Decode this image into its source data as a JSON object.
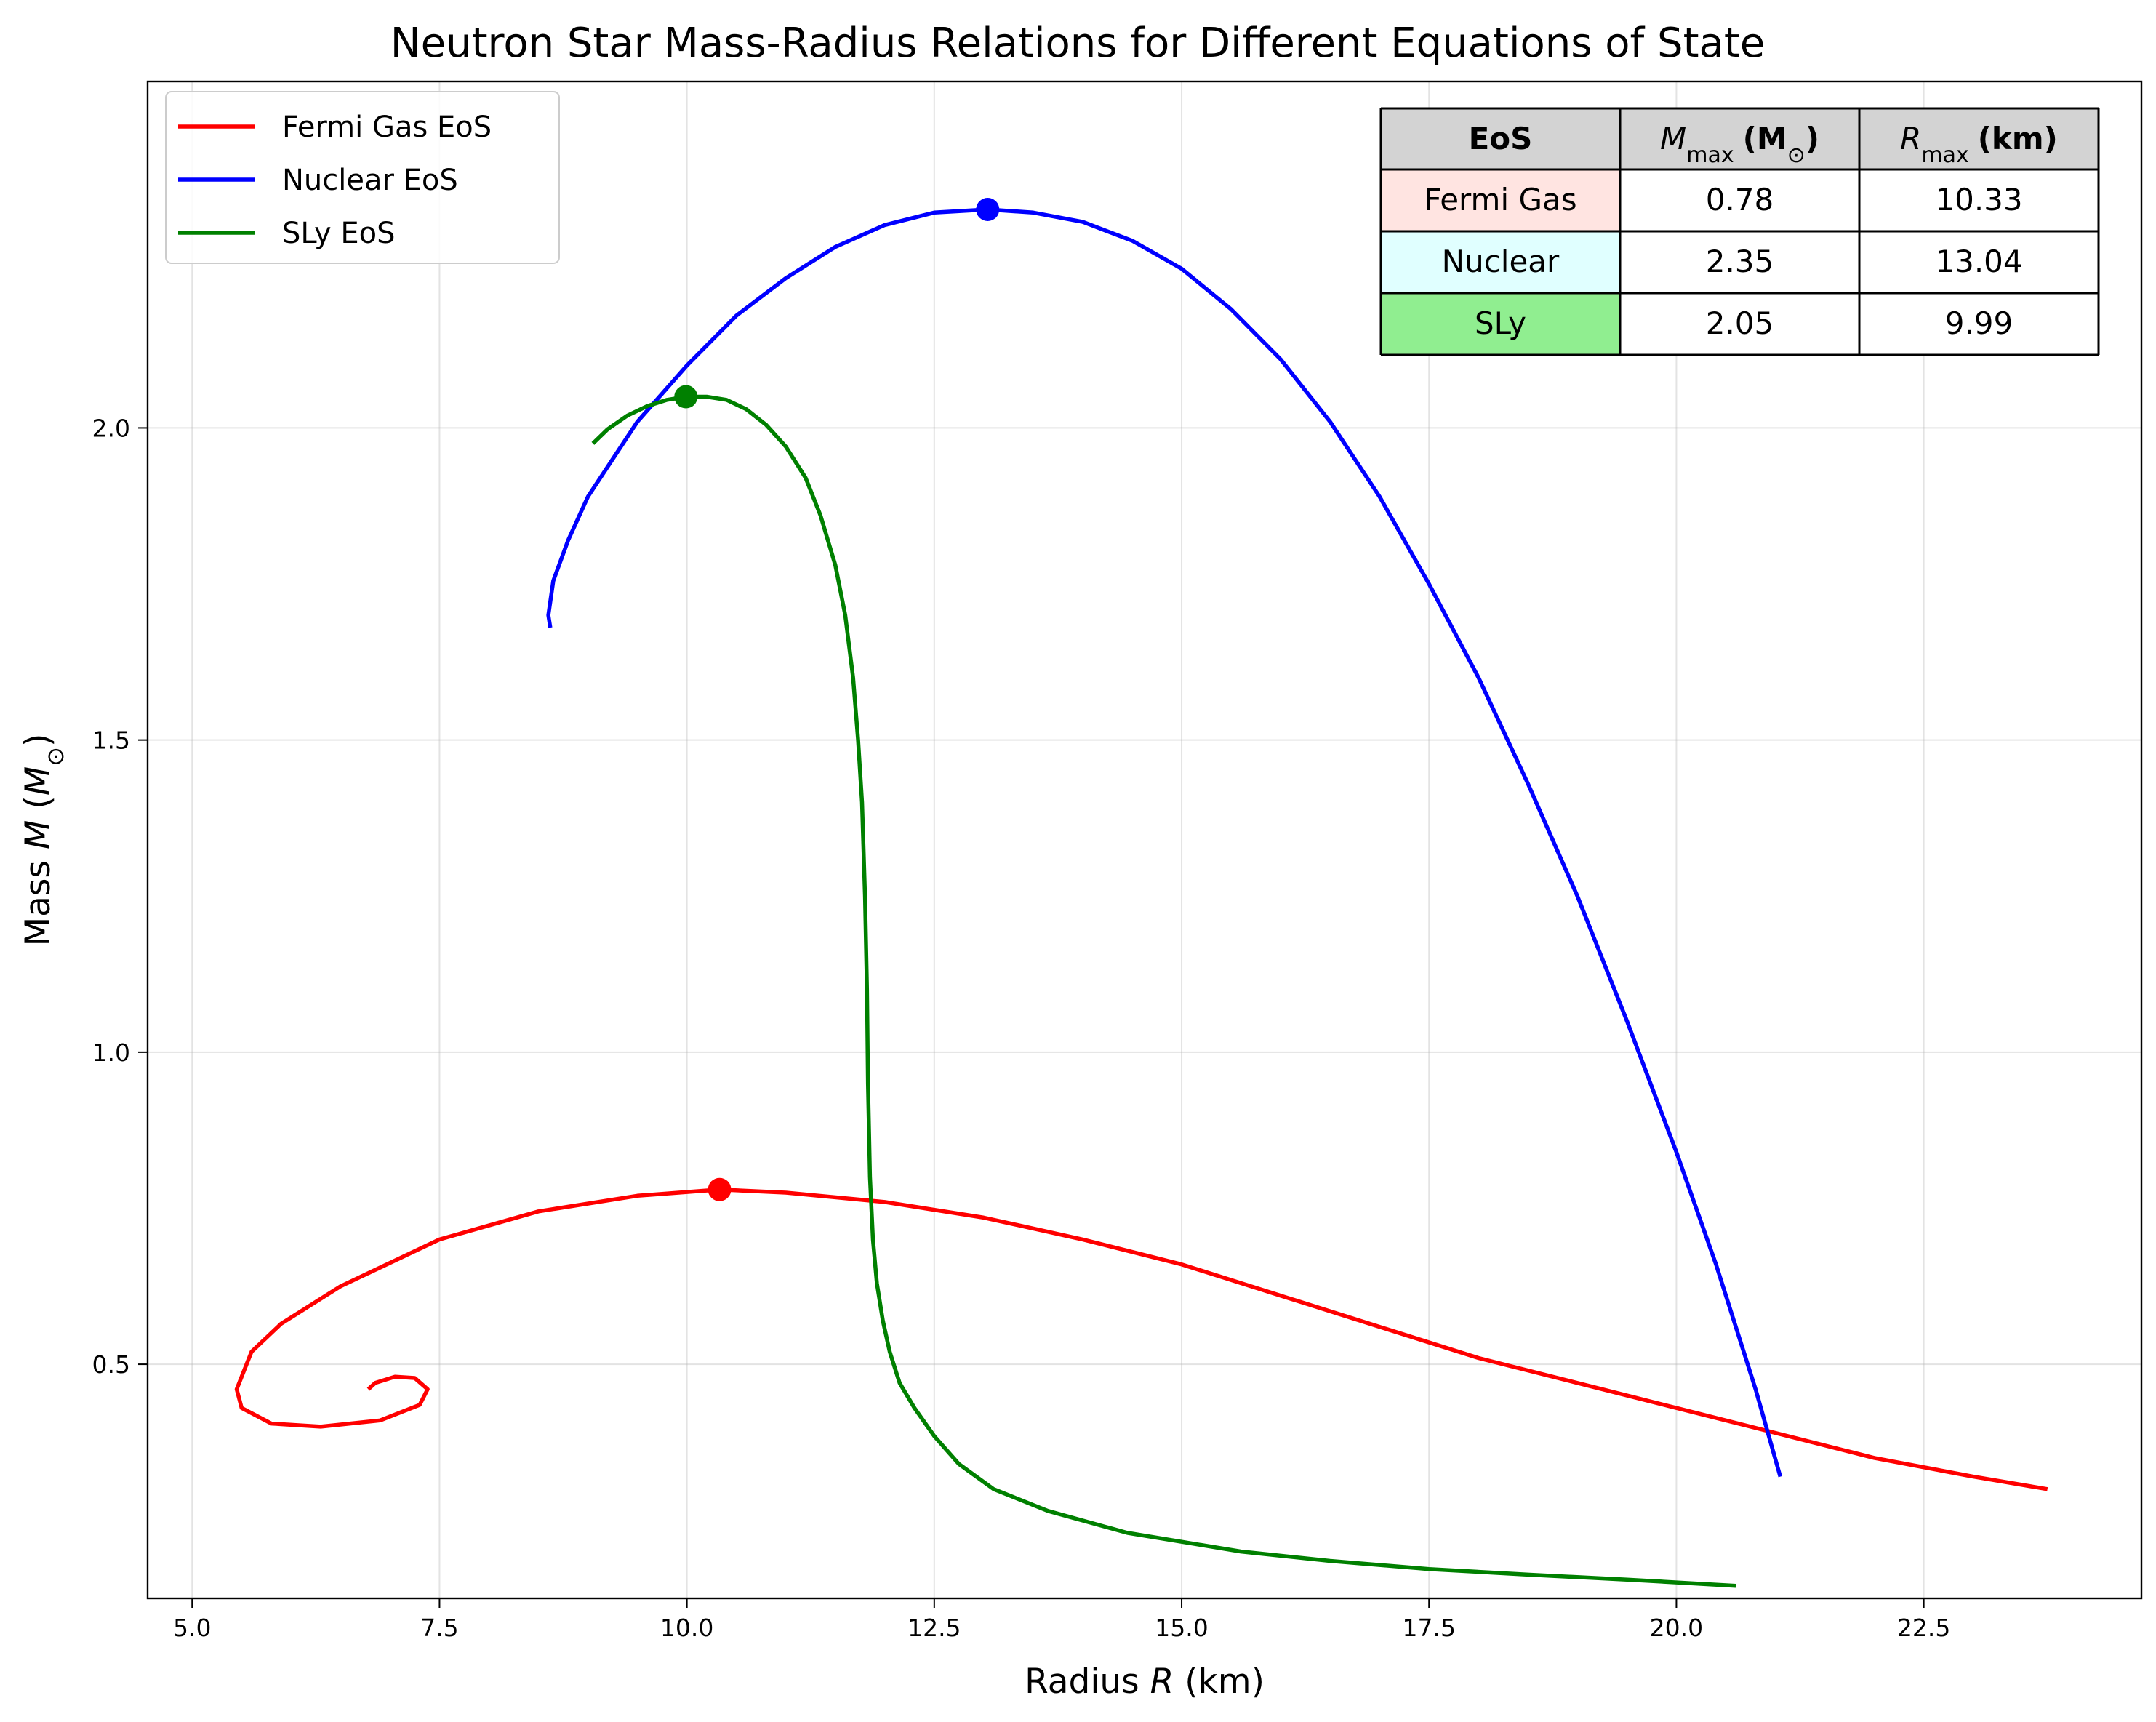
{
  "chart_data": {
    "type": "line",
    "title": "Neutron Star Mass-Radius Relations for Different Equations of State",
    "xlabel": "Radius R (km)",
    "ylabel": "Mass M (M⊙)",
    "xlim": [
      4.55,
      24.7
    ],
    "ylim": [
      0.125,
      2.555
    ],
    "x_ticks": [
      5.0,
      7.5,
      10.0,
      12.5,
      15.0,
      17.5,
      20.0,
      22.5
    ],
    "x_tick_labels": [
      "5.0",
      "7.5",
      "10.0",
      "12.5",
      "15.0",
      "17.5",
      "20.0",
      "22.5"
    ],
    "y_ticks": [
      0.5,
      1.0,
      1.5,
      2.0
    ],
    "y_tick_labels": [
      "0.5",
      "1.0",
      "1.5",
      "2.0"
    ],
    "grid": true,
    "legend_position": "upper-left",
    "series": [
      {
        "name": "Fermi Gas EoS",
        "color": "#ff0000",
        "x": [
          23.75,
          23.0,
          22.0,
          21.0,
          20.0,
          19.0,
          18.0,
          17.0,
          16.0,
          15.0,
          14.0,
          13.0,
          12.0,
          11.0,
          10.33,
          9.5,
          8.5,
          7.5,
          6.5,
          5.9,
          5.6,
          5.45,
          5.5,
          5.8,
          6.3,
          6.9,
          7.3,
          7.38,
          7.25,
          7.05,
          6.85,
          6.78
        ],
        "y": [
          0.3,
          0.32,
          0.35,
          0.39,
          0.43,
          0.47,
          0.51,
          0.56,
          0.61,
          0.66,
          0.7,
          0.735,
          0.76,
          0.775,
          0.78,
          0.77,
          0.745,
          0.7,
          0.625,
          0.565,
          0.52,
          0.46,
          0.43,
          0.405,
          0.4,
          0.41,
          0.435,
          0.46,
          0.478,
          0.48,
          0.47,
          0.46
        ]
      },
      {
        "name": "Nuclear EoS",
        "color": "#0000ff",
        "x": [
          21.05,
          20.8,
          20.4,
          20.0,
          19.5,
          19.0,
          18.5,
          18.0,
          17.5,
          17.0,
          16.5,
          16.0,
          15.5,
          15.0,
          14.5,
          14.0,
          13.5,
          13.04,
          12.5,
          12.0,
          11.5,
          11.0,
          10.5,
          10.0,
          9.5,
          9.0,
          8.8,
          8.65,
          8.6,
          8.62
        ],
        "y": [
          0.32,
          0.46,
          0.66,
          0.84,
          1.05,
          1.25,
          1.43,
          1.6,
          1.75,
          1.89,
          2.01,
          2.11,
          2.19,
          2.255,
          2.3,
          2.33,
          2.345,
          2.35,
          2.345,
          2.325,
          2.29,
          2.24,
          2.18,
          2.1,
          2.01,
          1.89,
          1.82,
          1.755,
          1.7,
          1.68
        ]
      },
      {
        "name": "SLy EoS",
        "color": "#008000",
        "x": [
          20.6,
          19.5,
          18.5,
          17.5,
          16.5,
          15.6,
          14.45,
          13.65,
          13.1,
          12.75,
          12.5,
          12.3,
          12.15,
          12.05,
          11.98,
          11.92,
          11.88,
          11.85,
          11.83,
          11.82,
          11.8,
          11.77,
          11.73,
          11.68,
          11.6,
          11.5,
          11.35,
          11.2,
          11.0,
          10.8,
          10.6,
          10.4,
          10.2,
          9.99,
          9.8,
          9.6,
          9.4,
          9.2,
          9.05
        ],
        "y": [
          0.145,
          0.155,
          0.163,
          0.172,
          0.185,
          0.2,
          0.23,
          0.265,
          0.3,
          0.34,
          0.385,
          0.43,
          0.47,
          0.52,
          0.57,
          0.63,
          0.7,
          0.8,
          0.95,
          1.1,
          1.25,
          1.4,
          1.5,
          1.6,
          1.7,
          1.78,
          1.86,
          1.92,
          1.97,
          2.005,
          2.03,
          2.045,
          2.05,
          2.05,
          2.045,
          2.035,
          2.02,
          1.998,
          1.975
        ]
      }
    ],
    "max_points": [
      {
        "series": "Fermi Gas EoS",
        "x": 10.33,
        "y": 0.78,
        "color": "#ff0000"
      },
      {
        "series": "Nuclear EoS",
        "x": 13.04,
        "y": 2.35,
        "color": "#0000ff"
      },
      {
        "series": "SLy EoS",
        "x": 9.99,
        "y": 2.05,
        "color": "#008000"
      }
    ],
    "table": {
      "position": "upper-right",
      "header_bg": "#d3d3d3",
      "header": [
        "EoS",
        "M",
        "max",
        "(M",
        "⊙",
        ")",
        "R",
        "max",
        "(km)"
      ],
      "rows": [
        {
          "eos": "Fermi Gas",
          "m_max": "0.78",
          "r_max": "10.33",
          "bg": "#ffe4e1"
        },
        {
          "eos": "Nuclear",
          "m_max": "2.35",
          "r_max": "13.04",
          "bg": "#e0ffff"
        },
        {
          "eos": "SLy",
          "m_max": "2.05",
          "r_max": "9.99",
          "bg": "#90ee90"
        }
      ]
    }
  }
}
